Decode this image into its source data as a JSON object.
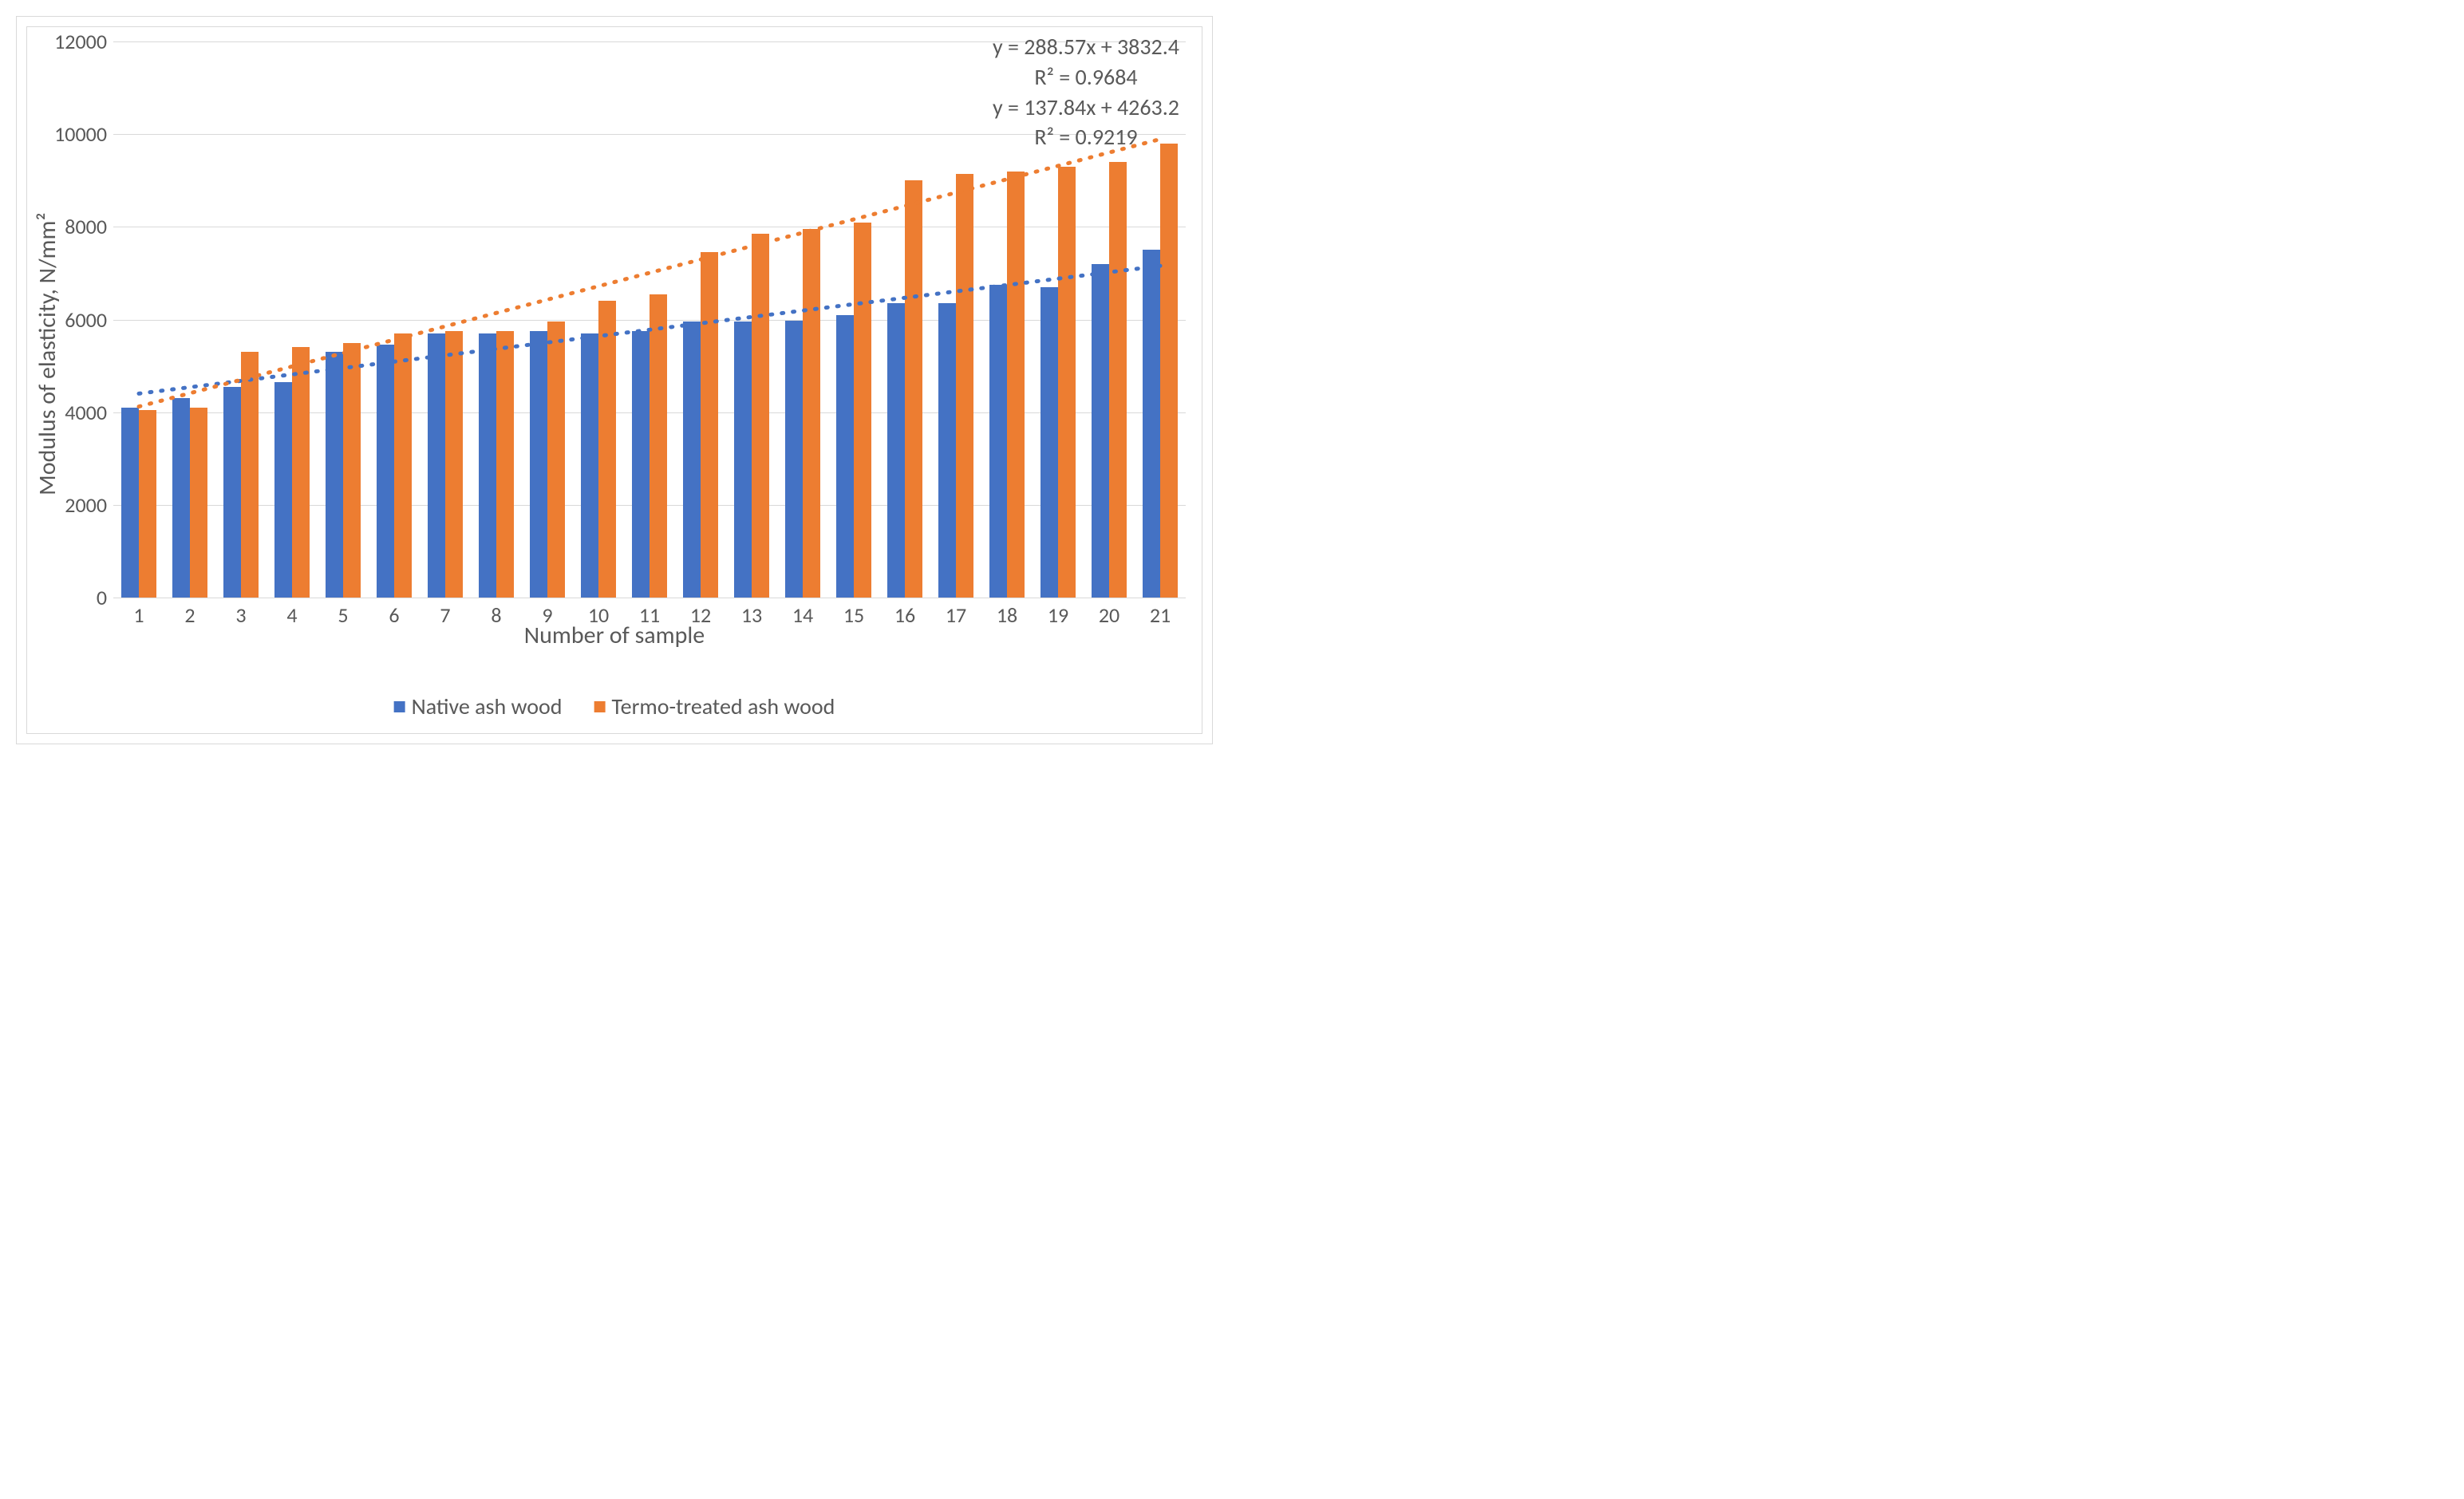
{
  "chart": {
    "type": "bar",
    "x_axis_title": "Number of sample",
    "y_axis_title": "Modulus of elasticity, N/mm²",
    "categories": [
      1,
      2,
      3,
      4,
      5,
      6,
      7,
      8,
      9,
      10,
      11,
      12,
      13,
      14,
      15,
      16,
      17,
      18,
      19,
      20,
      21
    ],
    "ylim": [
      0,
      12000
    ],
    "ytick_step": 2000,
    "yticks": [
      0,
      2000,
      4000,
      6000,
      8000,
      10000,
      12000
    ],
    "background_color": "#ffffff",
    "grid_color": "#d9d9d9",
    "border_color": "#d9d9d9",
    "tick_font_size": 26,
    "axis_title_font_size": 30,
    "legend_font_size": 28,
    "equation_font_size": 28,
    "text_color": "#595959",
    "bar_gap_ratio": 0.3,
    "series": [
      {
        "name": "Native ash wood",
        "color": "#4472c4",
        "values": [
          4100,
          4300,
          4550,
          4650,
          5300,
          5450,
          5700,
          5700,
          5750,
          5700,
          5750,
          5950,
          5950,
          5980,
          6100,
          6350,
          6350,
          6750,
          6700,
          7200,
          7500
        ],
        "trendline": {
          "color": "#4472c4",
          "dash": "6,10",
          "width": 5,
          "slope": 137.84,
          "intercept": 4263.2,
          "r2": 0.9219,
          "equation_text": "y = 137.84x + 4263.2",
          "r2_text": "R² = 0.9219"
        }
      },
      {
        "name": "Termo-treated ash wood",
        "color": "#ed7d31",
        "values": [
          4050,
          4100,
          5300,
          5400,
          5500,
          5700,
          5750,
          5750,
          5950,
          6400,
          6550,
          7450,
          7850,
          7950,
          8100,
          9000,
          9150,
          9200,
          9300,
          9400,
          9800
        ],
        "trendline": {
          "color": "#ed7d31",
          "dash": "6,10",
          "width": 5,
          "slope": 288.57,
          "intercept": 3832.4,
          "r2": 0.9684,
          "equation_text": "y = 288.57x + 3832.4",
          "r2_text": "R² = 0.9684"
        }
      }
    ],
    "equations_display": [
      "y = 288.57x + 3832.4",
      "R² = 0.9684",
      "y = 137.84x + 4263.2",
      "R² = 0.9219"
    ]
  }
}
